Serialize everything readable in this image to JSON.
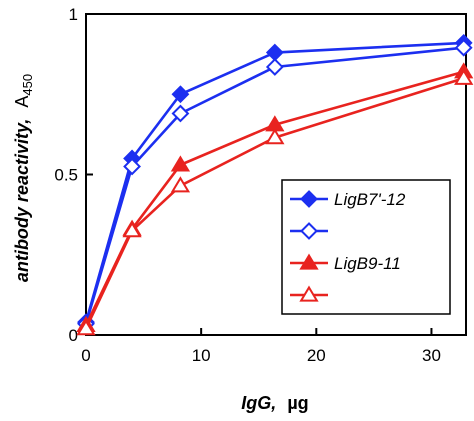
{
  "chart_data": {
    "type": "line",
    "title": "",
    "xlabel_main": "IgG,",
    "xlabel_unit": "µg",
    "ylabel_main": "antibody reactivity,",
    "ylabel_unit": "A",
    "ylabel_sub": "450",
    "xlim": [
      0,
      33
    ],
    "ylim": [
      0,
      1
    ],
    "xticks": [
      0,
      10,
      20,
      30
    ],
    "xtick_labels": [
      "0",
      "10",
      "20",
      "30"
    ],
    "yticks": [
      0,
      0.5,
      1
    ],
    "ytick_labels": [
      "0",
      "0.5",
      "1"
    ],
    "grid": false,
    "legend_placement": "bottom-right",
    "series": [
      {
        "name": "LigB7'-12",
        "color": "#1c2ff0",
        "marker": "diamond",
        "filled": true,
        "x": [
          0,
          4,
          8.2,
          16.4,
          32.8
        ],
        "y": [
          0.04,
          0.55,
          0.75,
          0.88,
          0.91
        ]
      },
      {
        "name": "",
        "color": "#1c2ff0",
        "marker": "diamond",
        "filled": false,
        "x": [
          0,
          4,
          8.2,
          16.4,
          32.8
        ],
        "y": [
          0.035,
          0.525,
          0.69,
          0.835,
          0.895
        ]
      },
      {
        "name": "LigB9-11",
        "color": "#e8231f",
        "marker": "triangle",
        "filled": true,
        "x": [
          0,
          4,
          8.2,
          16.4,
          32.8
        ],
        "y": [
          0.03,
          0.33,
          0.53,
          0.655,
          0.82
        ]
      },
      {
        "name": "",
        "color": "#e8231f",
        "marker": "triangle",
        "filled": false,
        "x": [
          0,
          4,
          8.2,
          16.4,
          32.8
        ],
        "y": [
          0.02,
          0.325,
          0.465,
          0.615,
          0.8
        ]
      }
    ]
  }
}
